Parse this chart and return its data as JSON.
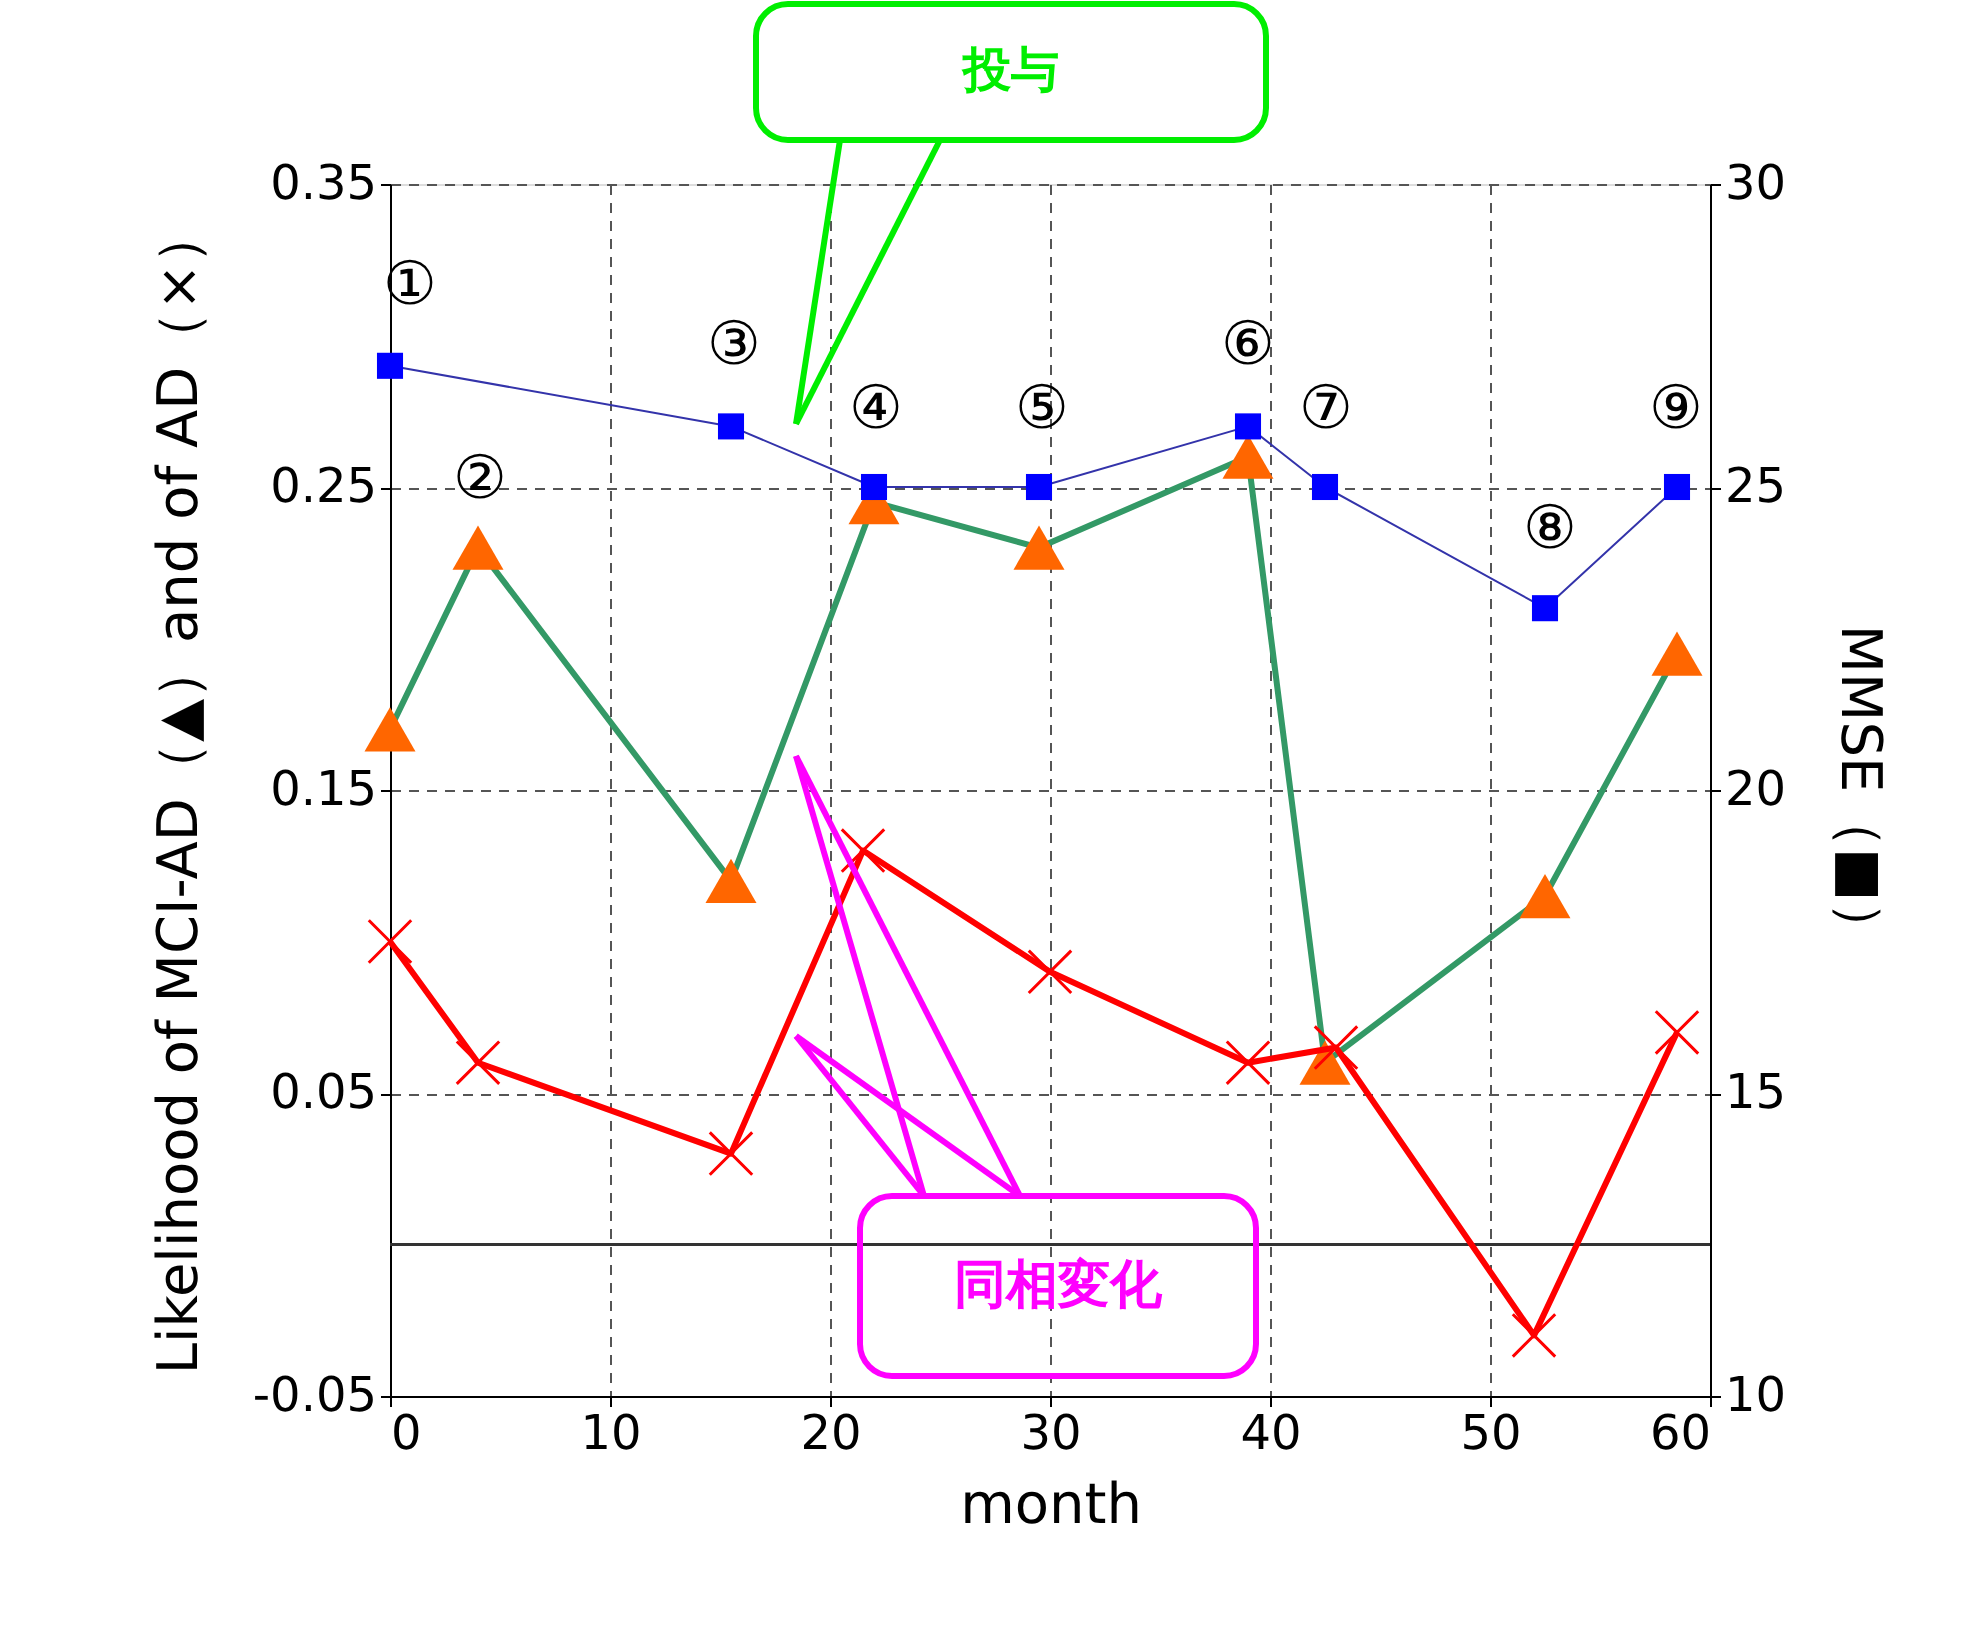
{
  "chart_data": {
    "type": "line",
    "xlabel": "month",
    "ylabel": "Likelihood of MCI-AD（▲）and of AD（×）",
    "y2label": "MMSE（■）",
    "xlim": [
      0,
      60
    ],
    "xticks": [
      0,
      10,
      20,
      30,
      40,
      50,
      60
    ],
    "ylim": [
      -0.05,
      0.35
    ],
    "yticks": [
      -0.05,
      0.05,
      0.15,
      0.25,
      0.35
    ],
    "y2lim": [
      10,
      30
    ],
    "y2ticks": [
      10,
      15,
      20,
      25,
      30
    ],
    "grid": true,
    "series": [
      {
        "color": "#339966",
        "colors": [
          "#ff6600",
          "#ff6600",
          "#ff6600",
          "#ff6600",
          "#ff6600",
          "#ff6600",
          "#ff6600",
          "#ff6600",
          "#ff6600"
        ],
        "marker": "triangle",
        "x": [
          0,
          4,
          15.5,
          22,
          29.5,
          39,
          42.5,
          52.5,
          58.5
        ],
        "values": [
          0.17,
          0.23,
          0.12,
          0.245,
          0.23,
          0.26,
          0.06,
          0.115,
          0.195
        ]
      },
      {
        "color": "#ff0000",
        "marker": "cross",
        "x": [
          0,
          4,
          15.5,
          21.5,
          30,
          39,
          43,
          52,
          58.5
        ],
        "values": [
          0.1,
          0.06,
          0.03,
          0.13,
          0.09,
          0.06,
          0.065,
          -0.03,
          0.07
        ]
      },
      {
        "color": "#3333aa",
        "colors": [
          "#0000ff",
          "#0000ff",
          "#0000ff",
          "#0000ff",
          "#0000ff",
          "#0000ff",
          "#0000ff",
          "#0000ff"
        ],
        "marker": "square",
        "axis": "y2",
        "x": [
          0,
          15.5,
          22,
          29.5,
          39,
          42.5,
          52.5,
          58.5
        ],
        "values": [
          27,
          26,
          25,
          25,
          26,
          25,
          23,
          25
        ]
      }
    ],
    "ref_lines": [
      {
        "axis": "y",
        "value": 0,
        "color": "#333333"
      }
    ],
    "annotations": [
      "①",
      "②",
      "③",
      "④",
      "⑤",
      "⑥",
      "⑦",
      "⑧",
      "⑨",
      "投与",
      "同相変化"
    ]
  }
}
